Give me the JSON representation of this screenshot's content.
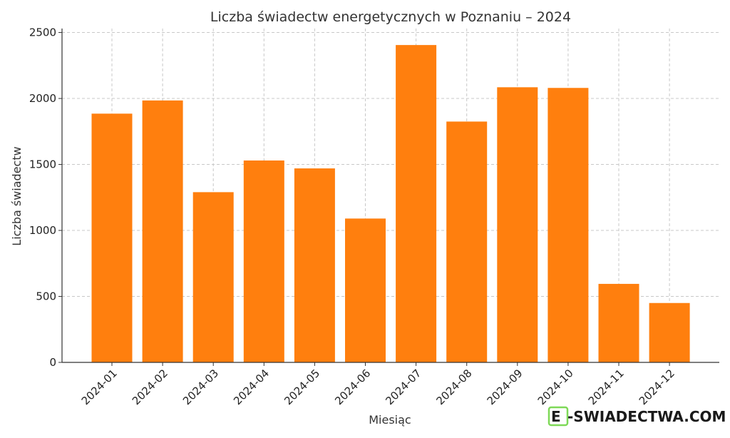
{
  "chart_data": {
    "type": "bar",
    "title": "Liczba świadectw energetycznych w Poznaniu – 2024",
    "xlabel": "Miesiąc",
    "ylabel": "Liczba świadectw",
    "categories": [
      "2024-01",
      "2024-02",
      "2024-03",
      "2024-04",
      "2024-05",
      "2024-06",
      "2024-07",
      "2024-08",
      "2024-09",
      "2024-10",
      "2024-11",
      "2024-12"
    ],
    "values": [
      1885,
      1985,
      1290,
      1530,
      1470,
      1090,
      2405,
      1825,
      2085,
      2080,
      595,
      450
    ],
    "ylim": [
      0,
      2530
    ],
    "yticks": [
      0,
      500,
      1000,
      1500,
      2000,
      2500
    ],
    "bar_color": "#ff7f0e",
    "grid": true
  },
  "watermark": {
    "logo_letter": "E",
    "text": "-SWIADECTWA.COM",
    "logo_color": "#7ed957"
  }
}
